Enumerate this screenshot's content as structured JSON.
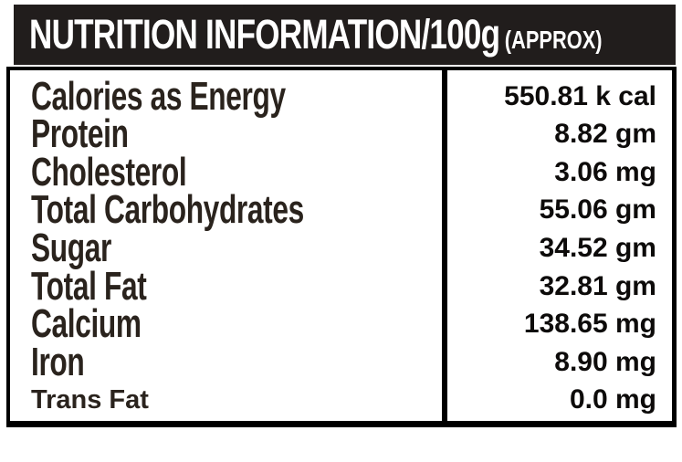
{
  "header": {
    "title": "NUTRITION INFORMATION/100g",
    "suffix": "(APPROX)"
  },
  "table": {
    "rows": [
      {
        "label": "Calories as Energy",
        "value": "550.81 k cal"
      },
      {
        "label": "Protein",
        "value": "8.82 gm"
      },
      {
        "label": "Cholesterol",
        "value": "3.06 mg"
      },
      {
        "label": "Total Carbohydrates",
        "value": "55.06 gm"
      },
      {
        "label": "Sugar",
        "value": "34.52 gm"
      },
      {
        "label": "Total Fat",
        "value": "32.81 gm"
      },
      {
        "label": "Calcium",
        "value": "138.65 mg"
      },
      {
        "label": "Iron",
        "value": "8.90 mg"
      },
      {
        "label": "Trans Fat",
        "value": "0.0 mg"
      }
    ]
  },
  "colors": {
    "header_bg": "#211d1c",
    "header_text": "#ffffff",
    "label_text": "#2a231d",
    "value_text": "#0d0b0a",
    "border": "#000000",
    "panel_bg": "#ffffff"
  }
}
